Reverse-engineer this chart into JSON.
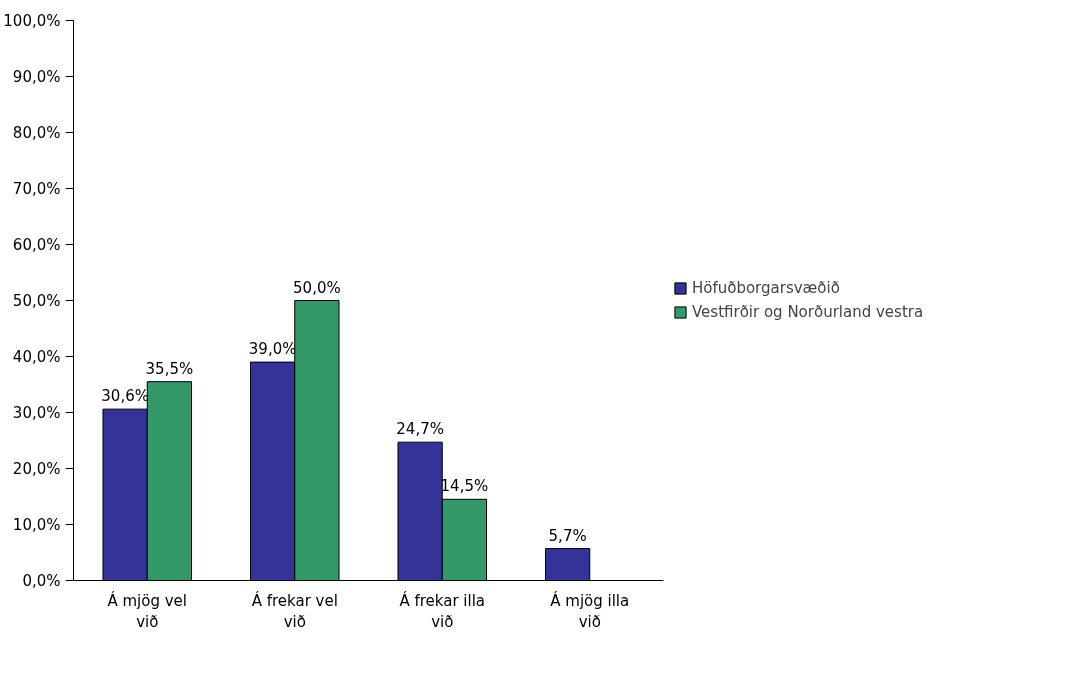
{
  "chart_data": {
    "type": "bar",
    "categories": [
      "Á mjög vel við",
      "Á frekar vel við",
      "Á frekar illa við",
      "Á mjög illa við"
    ],
    "series": [
      {
        "name": "Höfuðborgarsvæðið",
        "color": "#333399",
        "values": [
          30.6,
          39.0,
          24.7,
          5.7
        ],
        "value_labels": [
          "30,6%",
          "39,0%",
          "24,7%",
          "5,7%"
        ]
      },
      {
        "name": "Vestfirðir og Norðurland vestra",
        "color": "#339966",
        "values": [
          35.5,
          50.0,
          14.5,
          null
        ],
        "value_labels": [
          "35,5%",
          "50,0%",
          "14,5%",
          null
        ]
      }
    ],
    "ylim": [
      0,
      100
    ],
    "yticks": [
      {
        "value": 0,
        "label": "0,0%"
      },
      {
        "value": 10,
        "label": "10,0%"
      },
      {
        "value": 20,
        "label": "20,0%"
      },
      {
        "value": 30,
        "label": "30,0%"
      },
      {
        "value": 40,
        "label": "40,0%"
      },
      {
        "value": 50,
        "label": "50,0%"
      },
      {
        "value": 60,
        "label": "60,0%"
      },
      {
        "value": 70,
        "label": "70,0%"
      },
      {
        "value": 80,
        "label": "80,0%"
      },
      {
        "value": 90,
        "label": "90,0%"
      },
      {
        "value": 100,
        "label": "100,0%"
      }
    ],
    "grid": false,
    "legend": "right"
  }
}
